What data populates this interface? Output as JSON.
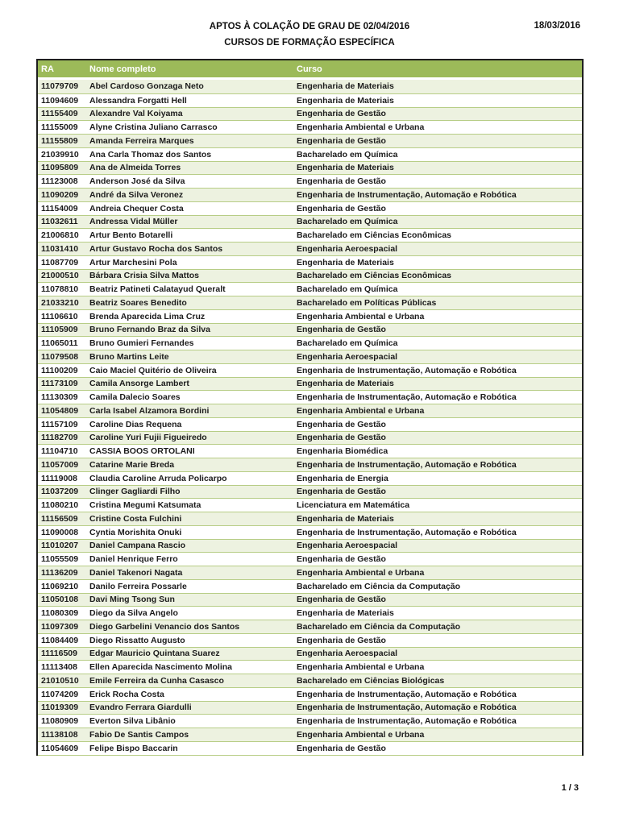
{
  "page": {
    "title_line1": "APTOS À COLAÇÃO DE GRAU DE 02/04/2016",
    "title_line2": "CURSOS DE FORMAÇÃO ESPECÍFICA",
    "date": "18/03/2016",
    "page_number": "1 / 3"
  },
  "colors": {
    "header_bg": "#9cba59",
    "row_alt_bg": "#edf2e0",
    "row_bg": "#ffffff",
    "row_border": "#b7cd86",
    "outer_border": "#1f1f1f"
  },
  "table": {
    "columns": [
      "RA",
      "Nome completo",
      "Curso"
    ],
    "rows": [
      {
        "ra": "11079709",
        "nome": "Abel Cardoso Gonzaga Neto",
        "curso": "Engenharia de Materiais"
      },
      {
        "ra": "11094609",
        "nome": "Alessandra Forgatti Hell",
        "curso": "Engenharia de Materiais"
      },
      {
        "ra": "11155409",
        "nome": "Alexandre Val Koiyama",
        "curso": "Engenharia de Gestão"
      },
      {
        "ra": "11155009",
        "nome": "Alyne Cristina Juliano Carrasco",
        "curso": "Engenharia Ambiental e Urbana"
      },
      {
        "ra": "11155809",
        "nome": "Amanda Ferreira Marques",
        "curso": "Engenharia de Gestão"
      },
      {
        "ra": "21039910",
        "nome": "Ana Carla Thomaz dos Santos",
        "curso": "Bacharelado em Química"
      },
      {
        "ra": "11095809",
        "nome": "Ana de Almeida Torres",
        "curso": "Engenharia de Materiais"
      },
      {
        "ra": "11123008",
        "nome": "Anderson José da Silva",
        "curso": "Engenharia de Gestão"
      },
      {
        "ra": "11090209",
        "nome": "André da Silva Veronez",
        "curso": "Engenharia de Instrumentação, Automação e Robótica"
      },
      {
        "ra": "11154009",
        "nome": "Andreia Chequer Costa",
        "curso": "Engenharia de Gestão"
      },
      {
        "ra": "11032611",
        "nome": "Andressa Vidal Müller",
        "curso": "Bacharelado em Química"
      },
      {
        "ra": "21006810",
        "nome": "Artur Bento Botarelli",
        "curso": "Bacharelado em Ciências Econômicas"
      },
      {
        "ra": "11031410",
        "nome": "Artur Gustavo Rocha dos Santos",
        "curso": "Engenharia Aeroespacial"
      },
      {
        "ra": "11087709",
        "nome": "Artur Marchesini Pola",
        "curso": "Engenharia de Materiais"
      },
      {
        "ra": "21000510",
        "nome": "Bárbara Crisia Silva Mattos",
        "curso": "Bacharelado em Ciências Econômicas"
      },
      {
        "ra": "11078810",
        "nome": "Beatriz Patineti Calatayud Queralt",
        "curso": "Bacharelado em Química"
      },
      {
        "ra": "21033210",
        "nome": "Beatriz Soares Benedito",
        "curso": "Bacharelado em Políticas Públicas"
      },
      {
        "ra": "11106610",
        "nome": "Brenda Aparecida Lima Cruz",
        "curso": "Engenharia Ambiental e Urbana"
      },
      {
        "ra": "11105909",
        "nome": "Bruno Fernando Braz da Silva",
        "curso": "Engenharia de Gestão"
      },
      {
        "ra": "11065011",
        "nome": "Bruno Gumieri Fernandes",
        "curso": "Bacharelado em Química"
      },
      {
        "ra": "11079508",
        "nome": "Bruno Martins Leite",
        "curso": "Engenharia Aeroespacial"
      },
      {
        "ra": "11100209",
        "nome": "Caio Maciel Quitério de Oliveira",
        "curso": "Engenharia de Instrumentação, Automação e Robótica"
      },
      {
        "ra": "11173109",
        "nome": "Camila Ansorge Lambert",
        "curso": "Engenharia de Materiais"
      },
      {
        "ra": "11130309",
        "nome": "Camila Dalecio Soares",
        "curso": "Engenharia de Instrumentação, Automação e Robótica"
      },
      {
        "ra": "11054809",
        "nome": "Carla Isabel Alzamora Bordini",
        "curso": "Engenharia Ambiental e Urbana"
      },
      {
        "ra": "11157109",
        "nome": "Caroline Dias Requena",
        "curso": "Engenharia de Gestão"
      },
      {
        "ra": "11182709",
        "nome": "Caroline Yuri Fujii Figueiredo",
        "curso": "Engenharia de Gestão"
      },
      {
        "ra": "11104710",
        "nome": "CASSIA BOOS ORTOLANI",
        "curso": "Engenharia Biomédica"
      },
      {
        "ra": "11057009",
        "nome": "Catarine Marie Breda",
        "curso": "Engenharia de Instrumentação, Automação e Robótica"
      },
      {
        "ra": "11119008",
        "nome": "Claudia Caroline Arruda Policarpo",
        "curso": "Engenharia de Energia"
      },
      {
        "ra": "11037209",
        "nome": "Clinger Gagliardi Filho",
        "curso": "Engenharia de Gestão"
      },
      {
        "ra": "11080210",
        "nome": "Cristina Megumi Katsumata",
        "curso": "Licenciatura em Matemática"
      },
      {
        "ra": "11156509",
        "nome": "Cristine Costa Fulchini",
        "curso": "Engenharia de Materiais"
      },
      {
        "ra": "11090008",
        "nome": "Cyntia Morishita Onuki",
        "curso": "Engenharia de Instrumentação, Automação e Robótica"
      },
      {
        "ra": "11010207",
        "nome": "Daniel Campana Rascio",
        "curso": "Engenharia Aeroespacial"
      },
      {
        "ra": "11055509",
        "nome": "Daniel Henrique Ferro",
        "curso": "Engenharia de Gestão"
      },
      {
        "ra": "11136209",
        "nome": "Daniel Takenori Nagata",
        "curso": "Engenharia Ambiental e Urbana"
      },
      {
        "ra": "11069210",
        "nome": "Danilo Ferreira Possarle",
        "curso": "Bacharelado em Ciência da Computação"
      },
      {
        "ra": "11050108",
        "nome": "Davi Ming Tsong Sun",
        "curso": "Engenharia de Gestão"
      },
      {
        "ra": "11080309",
        "nome": "Diego da Silva Angelo",
        "curso": "Engenharia de Materiais"
      },
      {
        "ra": "11097309",
        "nome": "Diego Garbelini Venancio dos Santos",
        "curso": "Bacharelado em Ciência da Computação"
      },
      {
        "ra": "11084409",
        "nome": "Diego Rissatto Augusto",
        "curso": "Engenharia de Gestão"
      },
      {
        "ra": "11116509",
        "nome": "Edgar Mauricio Quintana Suarez",
        "curso": "Engenharia Aeroespacial"
      },
      {
        "ra": "11113408",
        "nome": "Ellen Aparecida Nascimento Molina",
        "curso": "Engenharia Ambiental e Urbana"
      },
      {
        "ra": "21010510",
        "nome": "Emile Ferreira da Cunha Casasco",
        "curso": "Bacharelado em Ciências Biológicas"
      },
      {
        "ra": "11074209",
        "nome": "Erick Rocha Costa",
        "curso": "Engenharia de Instrumentação, Automação e Robótica"
      },
      {
        "ra": "11019309",
        "nome": "Evandro Ferrara Giardulli",
        "curso": "Engenharia de Instrumentação, Automação e Robótica"
      },
      {
        "ra": "11080909",
        "nome": "Everton Silva Libânio",
        "curso": "Engenharia de Instrumentação, Automação e Robótica"
      },
      {
        "ra": "11138108",
        "nome": "Fabio De Santis Campos",
        "curso": "Engenharia Ambiental e Urbana"
      },
      {
        "ra": "11054609",
        "nome": "Felipe Bispo Baccarin",
        "curso": "Engenharia de Gestão"
      }
    ]
  }
}
